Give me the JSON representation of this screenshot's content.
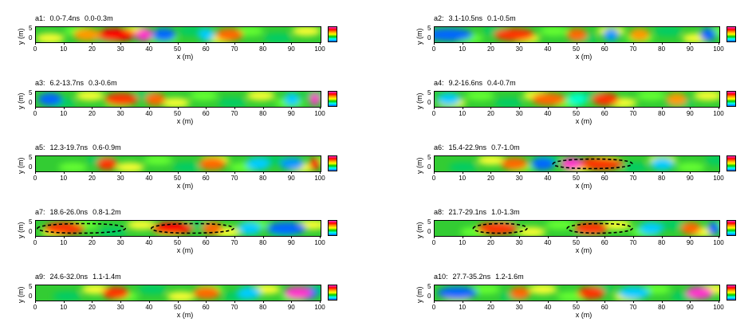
{
  "shared": {
    "ylabel": "y (m)",
    "xlabel": "x (m)",
    "yticks": [
      "0",
      "5"
    ],
    "xticks": [
      "0",
      "10",
      "20",
      "30",
      "40",
      "50",
      "60",
      "70",
      "80",
      "90",
      "100"
    ],
    "colorbar_colors": [
      "#ff33cc",
      "#ff0000",
      "#ff9900",
      "#ffff00",
      "#00cc00",
      "#00ffff",
      "#0066ff"
    ]
  },
  "chart_data": [
    {
      "type": "heatmap",
      "id": "a1",
      "time": "0.0-7.4ns",
      "depth": "0.0-0.3m",
      "xlim": [
        0,
        100
      ],
      "ylim": [
        0,
        5
      ],
      "hot_spots": [
        {
          "x": 28,
          "w": 12,
          "c": "#ff0000"
        },
        {
          "x": 38,
          "w": 5,
          "c": "#ff33cc"
        },
        {
          "x": 68,
          "w": 8,
          "c": "#ff6600"
        },
        {
          "x": 18,
          "w": 8,
          "c": "#ff9900"
        }
      ],
      "cold_spots": [
        {
          "x": 45,
          "w": 6,
          "c": "#0066ff"
        },
        {
          "x": 60,
          "w": 4,
          "c": "#00ccff"
        }
      ],
      "outlines": []
    },
    {
      "type": "heatmap",
      "id": "a2",
      "time": "3.1-10.5ns",
      "depth": "0.1-0.5m",
      "xlim": [
        0,
        100
      ],
      "ylim": [
        0,
        5
      ],
      "hot_spots": [
        {
          "x": 28,
          "w": 12,
          "c": "#ff3300"
        },
        {
          "x": 50,
          "w": 6,
          "c": "#ff6600"
        },
        {
          "x": 72,
          "w": 6,
          "c": "#ff9900"
        }
      ],
      "cold_spots": [
        {
          "x": 5,
          "w": 12,
          "c": "#0066ff"
        },
        {
          "x": 62,
          "w": 4,
          "c": "#0099ff"
        },
        {
          "x": 96,
          "w": 4,
          "c": "#0066ff"
        }
      ],
      "outlines": []
    },
    {
      "type": "heatmap",
      "id": "a3",
      "time": "6.2-13.7ns",
      "depth": "0.3-0.6m",
      "xlim": [
        0,
        100
      ],
      "ylim": [
        0,
        5
      ],
      "hot_spots": [
        {
          "x": 30,
          "w": 10,
          "c": "#ff3300"
        },
        {
          "x": 42,
          "w": 6,
          "c": "#ff6600"
        },
        {
          "x": 98,
          "w": 3,
          "c": "#ff33cc"
        }
      ],
      "cold_spots": [
        {
          "x": 5,
          "w": 6,
          "c": "#0066ff"
        },
        {
          "x": 90,
          "w": 4,
          "c": "#00ccff"
        }
      ],
      "outlines": []
    },
    {
      "type": "heatmap",
      "id": "a4",
      "time": "9.2-16.6ns",
      "depth": "0.4-0.7m",
      "xlim": [
        0,
        100
      ],
      "ylim": [
        0,
        5
      ],
      "hot_spots": [
        {
          "x": 40,
          "w": 10,
          "c": "#ff6600"
        },
        {
          "x": 60,
          "w": 8,
          "c": "#ff3300"
        },
        {
          "x": 85,
          "w": 6,
          "c": "#ff9900"
        }
      ],
      "cold_spots": [
        {
          "x": 5,
          "w": 6,
          "c": "#00ccff"
        },
        {
          "x": 50,
          "w": 5,
          "c": "#00ffcc"
        }
      ],
      "outlines": []
    },
    {
      "type": "heatmap",
      "id": "a5",
      "time": "12.3-19.7ns",
      "depth": "0.6-0.9m",
      "xlim": [
        0,
        100
      ],
      "ylim": [
        0,
        5
      ],
      "hot_spots": [
        {
          "x": 25,
          "w": 6,
          "c": "#ff3300"
        },
        {
          "x": 62,
          "w": 8,
          "c": "#ff6600"
        },
        {
          "x": 98,
          "w": 3,
          "c": "#ff0000"
        }
      ],
      "cold_spots": [
        {
          "x": 78,
          "w": 6,
          "c": "#00ccff"
        },
        {
          "x": 90,
          "w": 6,
          "c": "#0099ff"
        }
      ],
      "outlines": []
    },
    {
      "type": "heatmap",
      "id": "a6",
      "time": "15.4-22.9ns",
      "depth": "0.7-1.0m",
      "xlim": [
        0,
        100
      ],
      "ylim": [
        0,
        5
      ],
      "hot_spots": [
        {
          "x": 28,
          "w": 8,
          "c": "#ff6600"
        },
        {
          "x": 58,
          "w": 14,
          "c": "#ff3300"
        },
        {
          "x": 48,
          "w": 6,
          "c": "#ff33cc"
        }
      ],
      "cold_spots": [
        {
          "x": 38,
          "w": 6,
          "c": "#0066ff"
        },
        {
          "x": 80,
          "w": 6,
          "c": "#00ccff"
        }
      ],
      "outlines": [
        {
          "x0": 41,
          "x1": 70
        }
      ]
    },
    {
      "type": "heatmap",
      "id": "a7",
      "time": "18.6-26.0ns",
      "depth": "0.8-1.2m",
      "xlim": [
        0,
        100
      ],
      "ylim": [
        0,
        5
      ],
      "hot_spots": [
        {
          "x": 10,
          "w": 12,
          "c": "#ff3300"
        },
        {
          "x": 48,
          "w": 12,
          "c": "#ff0000"
        },
        {
          "x": 62,
          "w": 6,
          "c": "#ff6600"
        }
      ],
      "cold_spots": [
        {
          "x": 88,
          "w": 10,
          "c": "#0066ff"
        },
        {
          "x": 75,
          "w": 6,
          "c": "#00ccff"
        }
      ],
      "outlines": [
        {
          "x0": 0,
          "x1": 32
        },
        {
          "x0": 40,
          "x1": 70
        }
      ]
    },
    {
      "type": "heatmap",
      "id": "a8",
      "time": "21.7-29.1ns",
      "depth": "1.0-1.3m",
      "xlim": [
        0,
        100
      ],
      "ylim": [
        0,
        5
      ],
      "hot_spots": [
        {
          "x": 22,
          "w": 12,
          "c": "#ff3300"
        },
        {
          "x": 55,
          "w": 10,
          "c": "#ff3300"
        },
        {
          "x": 90,
          "w": 6,
          "c": "#ff6600"
        }
      ],
      "cold_spots": [
        {
          "x": 76,
          "w": 6,
          "c": "#00ccff"
        },
        {
          "x": 98,
          "w": 3,
          "c": "#0066ff"
        }
      ],
      "outlines": [
        {
          "x0": 13,
          "x1": 33
        },
        {
          "x0": 46,
          "x1": 70
        }
      ]
    },
    {
      "type": "heatmap",
      "id": "a9",
      "time": "24.6-32.0ns",
      "depth": "1.1-1.4m",
      "xlim": [
        0,
        100
      ],
      "ylim": [
        0,
        5
      ],
      "hot_spots": [
        {
          "x": 28,
          "w": 8,
          "c": "#ff3300"
        },
        {
          "x": 60,
          "w": 8,
          "c": "#ff6600"
        },
        {
          "x": 92,
          "w": 8,
          "c": "#ff33cc"
        }
      ],
      "cold_spots": [
        {
          "x": 95,
          "w": 6,
          "c": "#0066ff"
        },
        {
          "x": 75,
          "w": 6,
          "c": "#00ccff"
        }
      ],
      "outlines": []
    },
    {
      "type": "heatmap",
      "id": "a10",
      "time": "27.7-35.2ns",
      "depth": "1.2-1.6m",
      "xlim": [
        0,
        100
      ],
      "ylim": [
        0,
        5
      ],
      "hot_spots": [
        {
          "x": 30,
          "w": 6,
          "c": "#ff6600"
        },
        {
          "x": 55,
          "w": 8,
          "c": "#ff3300"
        },
        {
          "x": 93,
          "w": 8,
          "c": "#ff33cc"
        }
      ],
      "cold_spots": [
        {
          "x": 8,
          "w": 10,
          "c": "#0066ff"
        },
        {
          "x": 70,
          "w": 8,
          "c": "#00ccff"
        }
      ],
      "outlines": []
    }
  ]
}
